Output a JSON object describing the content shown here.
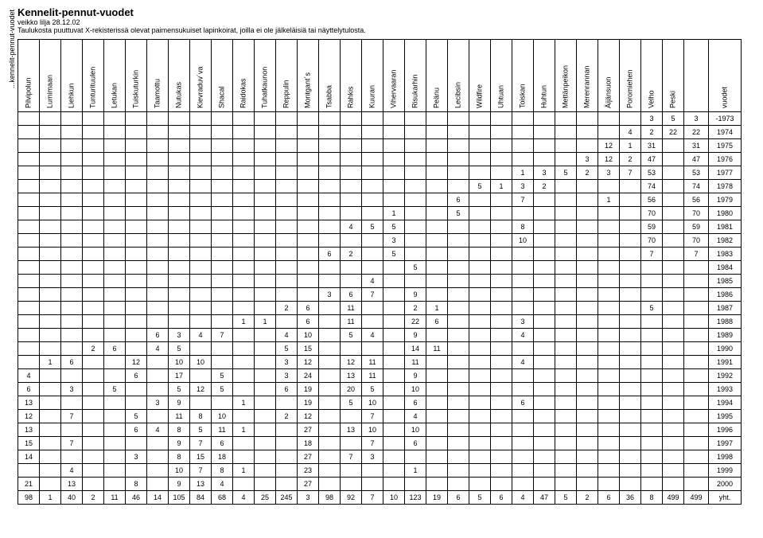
{
  "sideLabel": "...kennelit-pennut-vuodet",
  "titleMain": "Kennelit-pennut-vuodet",
  "titleSub1": "veikko lilja 28.12.02",
  "titleSub2": "Taulukosta puuttuvat X-rekisterissä olevat paimensukuiset lapinkoirat, joilla ei ole jälkeläisiä tai näyttelytulosta.",
  "kennels": [
    "Pilvipolun",
    "Lumimaan",
    "Liehkun",
    "Tunturituulen",
    "Letukan",
    "Tuiskuturkin",
    "Taamottu",
    "Nutukas",
    "Kievraduv´va",
    "Shacal",
    "Raidokas",
    "Tuhatkaunon",
    "Reppulin",
    "Montgant´s",
    "Tsabba",
    "Rahkis",
    "Kuuran",
    "Vihervaaran",
    "Risukarhin",
    "Peänu",
    "Lecibsin",
    "Wildfire",
    "Uhtuan",
    "Toiskan",
    "Huhtun",
    "Mettänpeikon",
    "Merenrannan",
    "Äijänsuon",
    "Poromiehen",
    "Velho",
    "Peski"
  ],
  "yearHeader": "vuodet",
  "years": [
    "-1973",
    "1974",
    "1975",
    "1976",
    "1977",
    "1978",
    "1979",
    "1980",
    "1981",
    "1982",
    "1983",
    "1984",
    "1985",
    "1986",
    "1987",
    "1988",
    "1989",
    "1990",
    "1991",
    "1992",
    "1993",
    "1994",
    "1995",
    "1996",
    "1997",
    "1998",
    "1999",
    "2000",
    "yht."
  ],
  "rows": [
    [
      "",
      "",
      "",
      "",
      "",
      "",
      "",
      "",
      "",
      "",
      "",
      "",
      "",
      "",
      "",
      "",
      "",
      "",
      "",
      "",
      "",
      "",
      "",
      "",
      "",
      "",
      "",
      "",
      "",
      "3",
      "5",
      "3"
    ],
    [
      "",
      "",
      "",
      "",
      "",
      "",
      "",
      "",
      "",
      "",
      "",
      "",
      "",
      "",
      "",
      "",
      "",
      "",
      "",
      "",
      "",
      "",
      "",
      "",
      "",
      "",
      "",
      "",
      "4",
      "2",
      "22",
      "22"
    ],
    [
      "",
      "",
      "",
      "",
      "",
      "",
      "",
      "",
      "",
      "",
      "",
      "",
      "",
      "",
      "",
      "",
      "",
      "",
      "",
      "",
      "",
      "",
      "",
      "",
      "",
      "",
      "",
      "12",
      "1",
      "31",
      "",
      "31"
    ],
    [
      "",
      "",
      "",
      "",
      "",
      "",
      "",
      "",
      "",
      "",
      "",
      "",
      "",
      "",
      "",
      "",
      "",
      "",
      "",
      "",
      "",
      "",
      "",
      "",
      "",
      "",
      "3",
      "12",
      "2",
      "47",
      "",
      "47"
    ],
    [
      "",
      "",
      "",
      "",
      "",
      "",
      "",
      "",
      "",
      "",
      "",
      "",
      "",
      "",
      "",
      "",
      "",
      "",
      "",
      "",
      "",
      "",
      "",
      "1",
      "3",
      "5",
      "2",
      "3",
      "7",
      "53",
      "",
      "53"
    ],
    [
      "",
      "",
      "",
      "",
      "",
      "",
      "",
      "",
      "",
      "",
      "",
      "",
      "",
      "",
      "",
      "",
      "",
      "",
      "",
      "",
      "",
      "5",
      "1",
      "3",
      "2",
      "",
      "",
      "",
      "",
      "74",
      "",
      "74"
    ],
    [
      "",
      "",
      "",
      "",
      "",
      "",
      "",
      "",
      "",
      "",
      "",
      "",
      "",
      "",
      "",
      "",
      "",
      "",
      "",
      "",
      "6",
      "",
      "",
      "7",
      "",
      "",
      "",
      "1",
      "",
      "56",
      "",
      "56"
    ],
    [
      "",
      "",
      "",
      "",
      "",
      "",
      "",
      "",
      "",
      "",
      "",
      "",
      "",
      "",
      "",
      "",
      "",
      "1",
      "",
      "",
      "5",
      "",
      "",
      "",
      "",
      "",
      "",
      "",
      "",
      "70",
      "",
      "70"
    ],
    [
      "",
      "",
      "",
      "",
      "",
      "",
      "",
      "",
      "",
      "",
      "",
      "",
      "",
      "",
      "",
      "4",
      "5",
      "5",
      "",
      "",
      "",
      "",
      "",
      "8",
      "",
      "",
      "",
      "",
      "",
      "59",
      "",
      "59"
    ],
    [
      "",
      "",
      "",
      "",
      "",
      "",
      "",
      "",
      "",
      "",
      "",
      "",
      "",
      "",
      "",
      "",
      "",
      "3",
      "",
      "",
      "",
      "",
      "",
      "10",
      "",
      "",
      "",
      "",
      "",
      "70",
      "",
      "70"
    ],
    [
      "",
      "",
      "",
      "",
      "",
      "",
      "",
      "",
      "",
      "",
      "",
      "",
      "",
      "",
      "6",
      "2",
      "",
      "5",
      "",
      "",
      "",
      "",
      "",
      "",
      "",
      "",
      "",
      "",
      "",
      "7",
      "",
      "7"
    ],
    [
      "",
      "",
      "",
      "",
      "",
      "",
      "",
      "",
      "",
      "",
      "",
      "",
      "",
      "",
      "",
      "",
      "",
      "",
      "5",
      "",
      "",
      "",
      "",
      "",
      "",
      "",
      "",
      "",
      "",
      "",
      "",
      ""
    ],
    [
      "",
      "",
      "",
      "",
      "",
      "",
      "",
      "",
      "",
      "",
      "",
      "",
      "",
      "",
      "",
      "",
      "4",
      "",
      "",
      "",
      "",
      "",
      "",
      "",
      "",
      "",
      "",
      "",
      "",
      "",
      "",
      ""
    ],
    [
      "",
      "",
      "",
      "",
      "",
      "",
      "",
      "",
      "",
      "",
      "",
      "",
      "",
      "",
      "3",
      "6",
      "7",
      "",
      "9",
      "",
      "",
      "",
      "",
      "",
      "",
      "",
      "",
      "",
      "",
      "",
      "",
      ""
    ],
    [
      "",
      "",
      "",
      "",
      "",
      "",
      "",
      "",
      "",
      "",
      "",
      "",
      "2",
      "6",
      "",
      "11",
      "",
      "",
      "2",
      "1",
      "",
      "",
      "",
      "",
      "",
      "",
      "",
      "",
      "",
      "5",
      "",
      ""
    ],
    [
      "",
      "",
      "",
      "",
      "",
      "",
      "",
      "",
      "",
      "",
      "1",
      "1",
      "",
      "6",
      "",
      "11",
      "",
      "",
      "22",
      "6",
      "",
      "",
      "",
      "3",
      "",
      "",
      "",
      "",
      "",
      "",
      "",
      ""
    ],
    [
      "",
      "",
      "",
      "",
      "",
      "",
      "6",
      "3",
      "4",
      "7",
      "",
      "",
      "4",
      "10",
      "",
      "5",
      "4",
      "",
      "9",
      "",
      "",
      "",
      "",
      "4",
      "",
      "",
      "",
      "",
      "",
      "",
      "",
      ""
    ],
    [
      "",
      "",
      "",
      "2",
      "6",
      "",
      "4",
      "5",
      "",
      "",
      "",
      "",
      "5",
      "15",
      "",
      "",
      "",
      "",
      "14",
      "11",
      "",
      "",
      "",
      "",
      "",
      "",
      "",
      "",
      "",
      "",
      "",
      ""
    ],
    [
      "",
      "1",
      "6",
      "",
      "",
      "12",
      "",
      "10",
      "10",
      "",
      "",
      "",
      "3",
      "12",
      "",
      "12",
      "11",
      "",
      "11",
      "",
      "",
      "",
      "",
      "4",
      "",
      "",
      "",
      "",
      "",
      "",
      "",
      ""
    ],
    [
      "4",
      "",
      "",
      "",
      "",
      "6",
      "",
      "17",
      "",
      "5",
      "",
      "",
      "3",
      "24",
      "",
      "13",
      "11",
      "",
      "9",
      "",
      "",
      "",
      "",
      "",
      "",
      "",
      "",
      "",
      "",
      "",
      "",
      ""
    ],
    [
      "6",
      "",
      "3",
      "",
      "5",
      "",
      "",
      "5",
      "12",
      "5",
      "",
      "",
      "6",
      "19",
      "",
      "20",
      "5",
      "",
      "10",
      "",
      "",
      "",
      "",
      "",
      "",
      "",
      "",
      "",
      "",
      "",
      "",
      ""
    ],
    [
      "13",
      "",
      "",
      "",
      "",
      "",
      "3",
      "9",
      "",
      "",
      "1",
      "",
      "",
      "19",
      "",
      "5",
      "10",
      "",
      "6",
      "",
      "",
      "",
      "",
      "6",
      "",
      "",
      "",
      "",
      "",
      "",
      "",
      ""
    ],
    [
      "12",
      "",
      "7",
      "",
      "",
      "5",
      "",
      "11",
      "8",
      "10",
      "",
      "",
      "2",
      "12",
      "",
      "",
      "7",
      "",
      "4",
      "",
      "",
      "",
      "",
      "",
      "",
      "",
      "",
      "",
      "",
      "",
      "",
      ""
    ],
    [
      "13",
      "",
      "",
      "",
      "",
      "6",
      "4",
      "8",
      "5",
      "11",
      "1",
      "",
      "",
      "27",
      "",
      "13",
      "10",
      "",
      "10",
      "",
      "",
      "",
      "",
      "",
      "",
      "",
      "",
      "",
      "",
      "",
      "",
      ""
    ],
    [
      "15",
      "",
      "7",
      "",
      "",
      "",
      "",
      "9",
      "7",
      "6",
      "",
      "",
      "",
      "18",
      "",
      "",
      "7",
      "",
      "6",
      "",
      "",
      "",
      "",
      "",
      "",
      "",
      "",
      "",
      "",
      "",
      "",
      ""
    ],
    [
      "14",
      "",
      "",
      "",
      "",
      "3",
      "",
      "8",
      "15",
      "18",
      "",
      "",
      "",
      "27",
      "",
      "7",
      "3",
      "",
      "",
      "",
      "",
      "",
      "",
      "",
      "",
      "",
      "",
      "",
      "",
      "",
      "",
      ""
    ],
    [
      "",
      "",
      "4",
      "",
      "",
      "",
      "",
      "10",
      "7",
      "8",
      "1",
      "",
      "",
      "23",
      "",
      "",
      "",
      "",
      "1",
      "",
      "",
      "",
      "",
      "",
      "",
      "",
      "",
      "",
      "",
      "",
      "",
      ""
    ],
    [
      "21",
      "",
      "13",
      "",
      "",
      "8",
      "",
      "9",
      "13",
      "4",
      "",
      "",
      "",
      "27",
      "",
      "",
      "",
      "",
      "",
      "",
      "",
      "",
      "",
      "",
      "",
      "",
      "",
      "",
      "",
      "",
      "",
      ""
    ],
    [
      "98",
      "1",
      "40",
      "2",
      "11",
      "46",
      "14",
      "105",
      "84",
      "68",
      "4",
      "25",
      "245",
      "3",
      "98",
      "92",
      "7",
      "10",
      "123",
      "19",
      "6",
      "5",
      "6",
      "4",
      "47",
      "5",
      "2",
      "6",
      "36",
      "8",
      "499",
      ""
    ]
  ],
  "totals": [
    "3",
    "22",
    "31",
    "47",
    "53",
    "74",
    "56",
    "70",
    "59",
    "70",
    "7",
    "",
    "",
    "",
    "",
    "",
    "",
    "",
    "",
    "",
    "",
    "",
    "",
    "",
    "",
    "",
    "",
    "",
    "499"
  ]
}
